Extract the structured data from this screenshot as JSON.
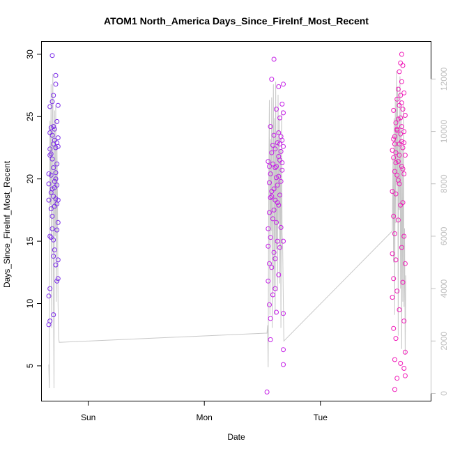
{
  "chart_data": {
    "type": "scatter",
    "title": "ATOM1 North_America Days_Since_FireInf_Most_Recent",
    "xlabel": "Date",
    "ylabel": "Days_Since_FireInf_Most_Recent",
    "x_ticks": [
      {
        "label": "Sun",
        "value": 0.0
      },
      {
        "label": "Mon",
        "value": 1.0
      },
      {
        "label": "Tue",
        "value": 2.0
      }
    ],
    "y_ticks": [
      5,
      10,
      15,
      20,
      25,
      30
    ],
    "y2_ticks": [
      0,
      2000,
      4000,
      6000,
      8000,
      10000,
      12000
    ],
    "xlim": [
      -0.4,
      2.95
    ],
    "ylim": [
      2.2,
      31.0
    ],
    "y2lim": [
      -280,
      13420
    ],
    "grid": false,
    "secondary_axis": "right",
    "colors": {
      "cluster_a": "#7a2ae8",
      "cluster_b": "#c41ee6",
      "cluster_c": "#f01ab8",
      "secondary_line": "#c8c8c8",
      "right_axis": "#bfbfbf"
    },
    "series": [
      {
        "points": [
          [
            -0.34,
            18.3
          ],
          [
            -0.33,
            8.6
          ],
          [
            -0.33,
            11.2
          ],
          [
            -0.33,
            15.4
          ],
          [
            -0.33,
            22.4
          ],
          [
            -0.33,
            25.8
          ],
          [
            -0.32,
            24.1
          ],
          [
            -0.32,
            20.3
          ],
          [
            -0.32,
            17.6
          ],
          [
            -0.32,
            15.3
          ],
          [
            -0.31,
            29.9
          ],
          [
            -0.31,
            26.2
          ],
          [
            -0.31,
            23.5
          ],
          [
            -0.31,
            21.6
          ],
          [
            -0.31,
            19.2
          ],
          [
            -0.31,
            17.0
          ],
          [
            -0.3,
            26.7
          ],
          [
            -0.3,
            24.2
          ],
          [
            -0.3,
            22.8
          ],
          [
            -0.3,
            20.9
          ],
          [
            -0.3,
            18.6
          ],
          [
            -0.3,
            15.1
          ],
          [
            -0.3,
            9.1
          ],
          [
            -0.29,
            14.3
          ],
          [
            -0.29,
            17.8
          ],
          [
            -0.29,
            19.8
          ],
          [
            -0.29,
            23.1
          ],
          [
            -0.28,
            28.3
          ],
          [
            -0.28,
            27.6
          ],
          [
            -0.28,
            22.5
          ],
          [
            -0.28,
            20.5
          ],
          [
            -0.28,
            18.4
          ],
          [
            -0.28,
            13.1
          ],
          [
            -0.27,
            11.8
          ],
          [
            -0.27,
            15.9
          ],
          [
            -0.27,
            24.6
          ],
          [
            -0.27,
            21.2
          ],
          [
            -0.27,
            19.5
          ],
          [
            -0.26,
            25.9
          ],
          [
            -0.26,
            23.3
          ],
          [
            -0.26,
            18.3
          ],
          [
            -0.26,
            13.5
          ],
          [
            -0.26,
            12.0
          ],
          [
            -0.26,
            16.5
          ],
          [
            -0.26,
            22.6
          ],
          [
            -0.34,
            19.6
          ],
          [
            -0.33,
            21.9
          ],
          [
            -0.32,
            18.9
          ],
          [
            -0.31,
            16.0
          ],
          [
            -0.3,
            13.8
          ],
          [
            -0.29,
            24.0
          ],
          [
            -0.28,
            20.0
          ],
          [
            -0.27,
            22.9
          ],
          [
            -0.34,
            20.4
          ],
          [
            -0.33,
            23.7
          ],
          [
            -0.32,
            22.0
          ],
          [
            -0.29,
            19.3
          ],
          [
            -0.27,
            18.0
          ],
          [
            -0.34,
            8.3
          ],
          [
            -0.34,
            10.6
          ]
        ]
      },
      {
        "points": [
          [
            1.54,
            2.9
          ],
          [
            1.55,
            21.4
          ],
          [
            1.55,
            16.0
          ],
          [
            1.55,
            11.8
          ],
          [
            1.56,
            17.3
          ],
          [
            1.56,
            19.7
          ],
          [
            1.56,
            13.2
          ],
          [
            1.56,
            9.9
          ],
          [
            1.57,
            24.2
          ],
          [
            1.57,
            20.4
          ],
          [
            1.57,
            15.3
          ],
          [
            1.57,
            8.8
          ],
          [
            1.57,
            7.1
          ],
          [
            1.58,
            28.0
          ],
          [
            1.58,
            22.1
          ],
          [
            1.58,
            18.6
          ],
          [
            1.58,
            12.9
          ],
          [
            1.59,
            21.2
          ],
          [
            1.59,
            16.8
          ],
          [
            1.59,
            10.7
          ],
          [
            1.6,
            29.6
          ],
          [
            1.6,
            23.5
          ],
          [
            1.6,
            19.2
          ],
          [
            1.6,
            14.1
          ],
          [
            1.61,
            22.4
          ],
          [
            1.61,
            18.3
          ],
          [
            1.61,
            13.6
          ],
          [
            1.61,
            11.2
          ],
          [
            1.62,
            25.6
          ],
          [
            1.62,
            21.0
          ],
          [
            1.62,
            16.5
          ],
          [
            1.62,
            9.3
          ],
          [
            1.63,
            22.9
          ],
          [
            1.63,
            19.5
          ],
          [
            1.63,
            15.0
          ],
          [
            1.64,
            27.4
          ],
          [
            1.64,
            23.7
          ],
          [
            1.64,
            20.2
          ],
          [
            1.64,
            17.9
          ],
          [
            1.64,
            12.3
          ],
          [
            1.65,
            24.9
          ],
          [
            1.65,
            21.5
          ],
          [
            1.65,
            18.7
          ],
          [
            1.65,
            14.5
          ],
          [
            1.66,
            22.2
          ],
          [
            1.66,
            19.8
          ],
          [
            1.66,
            16.1
          ],
          [
            1.67,
            26.0
          ],
          [
            1.67,
            23.1
          ],
          [
            1.67,
            20.7
          ],
          [
            1.68,
            27.6
          ],
          [
            1.68,
            25.3
          ],
          [
            1.68,
            22.6
          ],
          [
            1.68,
            15.0
          ],
          [
            1.68,
            9.2
          ],
          [
            1.68,
            6.3
          ],
          [
            1.68,
            5.1
          ],
          [
            1.56,
            21.0
          ],
          [
            1.58,
            19.0
          ],
          [
            1.6,
            17.5
          ],
          [
            1.62,
            20.1
          ],
          [
            1.64,
            21.8
          ],
          [
            1.66,
            23.4
          ],
          [
            1.59,
            22.7
          ],
          [
            1.61,
            20.9
          ],
          [
            1.63,
            18.1
          ],
          [
            1.65,
            22.8
          ],
          [
            1.67,
            21.3
          ],
          [
            1.57,
            18.5
          ],
          [
            1.55,
            14.6
          ]
        ]
      },
      {
        "points": [
          [
            2.62,
            22.3
          ],
          [
            2.62,
            19.0
          ],
          [
            2.62,
            14.0
          ],
          [
            2.62,
            10.5
          ],
          [
            2.63,
            25.5
          ],
          [
            2.63,
            21.7
          ],
          [
            2.63,
            17.0
          ],
          [
            2.63,
            12.0
          ],
          [
            2.63,
            8.0
          ],
          [
            2.64,
            23.4
          ],
          [
            2.64,
            20.6
          ],
          [
            2.64,
            15.6
          ],
          [
            2.64,
            5.5
          ],
          [
            2.64,
            3.1
          ],
          [
            2.65,
            24.5
          ],
          [
            2.65,
            22.1
          ],
          [
            2.65,
            18.8
          ],
          [
            2.65,
            13.5
          ],
          [
            2.65,
            7.2
          ],
          [
            2.66,
            26.4
          ],
          [
            2.66,
            23.9
          ],
          [
            2.66,
            20.3
          ],
          [
            2.66,
            11.0
          ],
          [
            2.66,
            4.0
          ],
          [
            2.67,
            27.2
          ],
          [
            2.67,
            24.8
          ],
          [
            2.67,
            21.4
          ],
          [
            2.67,
            16.7
          ],
          [
            2.68,
            28.6
          ],
          [
            2.68,
            25.9
          ],
          [
            2.68,
            22.8
          ],
          [
            2.68,
            19.6
          ],
          [
            2.68,
            9.5
          ],
          [
            2.69,
            29.3
          ],
          [
            2.69,
            26.7
          ],
          [
            2.69,
            23.6
          ],
          [
            2.69,
            17.9
          ],
          [
            2.69,
            5.2
          ],
          [
            2.7,
            30.0
          ],
          [
            2.7,
            27.8
          ],
          [
            2.7,
            24.2
          ],
          [
            2.7,
            21.0
          ],
          [
            2.7,
            14.5
          ],
          [
            2.71,
            29.1
          ],
          [
            2.71,
            25.6
          ],
          [
            2.71,
            22.5
          ],
          [
            2.71,
            18.1
          ],
          [
            2.71,
            11.7
          ],
          [
            2.72,
            26.9
          ],
          [
            2.72,
            23.8
          ],
          [
            2.72,
            20.4
          ],
          [
            2.72,
            15.4
          ],
          [
            2.72,
            8.6
          ],
          [
            2.72,
            4.8
          ],
          [
            2.73,
            25.1
          ],
          [
            2.73,
            21.9
          ],
          [
            2.73,
            13.2
          ],
          [
            2.73,
            6.1
          ],
          [
            2.73,
            4.2
          ],
          [
            2.64,
            22.8
          ],
          [
            2.66,
            24.0
          ],
          [
            2.68,
            21.9
          ],
          [
            2.7,
            23.0
          ],
          [
            2.67,
            19.9
          ],
          [
            2.69,
            24.9
          ],
          [
            2.71,
            20.8
          ],
          [
            2.65,
            21.3
          ],
          [
            2.63,
            23.2
          ],
          [
            2.72,
            22.9
          ],
          [
            2.7,
            26.1
          ]
        ]
      }
    ],
    "secondary_line": [
      [
        -0.34,
        1100
      ],
      [
        -0.335,
        200
      ],
      [
        -0.33,
        10400
      ],
      [
        -0.325,
        7200
      ],
      [
        -0.32,
        11800
      ],
      [
        -0.315,
        2500
      ],
      [
        -0.31,
        9000
      ],
      [
        -0.305,
        12200
      ],
      [
        -0.3,
        4100
      ],
      [
        -0.295,
        200
      ],
      [
        -0.29,
        10800
      ],
      [
        -0.285,
        6000
      ],
      [
        -0.28,
        11000
      ],
      [
        -0.275,
        3500
      ],
      [
        -0.27,
        9500
      ],
      [
        -0.265,
        7500
      ],
      [
        -0.26,
        3400
      ],
      [
        -0.255,
        2100
      ],
      [
        -0.25,
        1950
      ],
      [
        1.54,
        2300
      ],
      [
        1.545,
        2600
      ],
      [
        1.55,
        1000
      ],
      [
        1.555,
        8000
      ],
      [
        1.56,
        11200
      ],
      [
        1.565,
        3000
      ],
      [
        1.57,
        9700
      ],
      [
        1.575,
        6200
      ],
      [
        1.58,
        11300
      ],
      [
        1.585,
        2500
      ],
      [
        1.59,
        8800
      ],
      [
        1.595,
        11800
      ],
      [
        1.6,
        4000
      ],
      [
        1.605,
        10500
      ],
      [
        1.61,
        3000
      ],
      [
        1.615,
        11900
      ],
      [
        1.62,
        5500
      ],
      [
        1.625,
        9800
      ],
      [
        1.63,
        3900
      ],
      [
        1.635,
        11400
      ],
      [
        1.64,
        6500
      ],
      [
        1.645,
        10600
      ],
      [
        1.65,
        4200
      ],
      [
        1.655,
        9300
      ],
      [
        1.66,
        2500
      ],
      [
        1.665,
        10800
      ],
      [
        1.67,
        6100
      ],
      [
        1.675,
        5600
      ],
      [
        1.68,
        3600
      ],
      [
        1.685,
        2000
      ],
      [
        2.62,
        6200
      ],
      [
        2.625,
        9000
      ],
      [
        2.63,
        5000
      ],
      [
        2.635,
        10500
      ],
      [
        2.64,
        3000
      ],
      [
        2.645,
        11200
      ],
      [
        2.65,
        6500
      ],
      [
        2.655,
        12300
      ],
      [
        2.66,
        8000
      ],
      [
        2.665,
        11700
      ],
      [
        2.67,
        2200
      ],
      [
        2.675,
        10500
      ],
      [
        2.68,
        7000
      ],
      [
        2.685,
        12100
      ],
      [
        2.69,
        4000
      ],
      [
        2.695,
        10900
      ],
      [
        2.7,
        1700
      ],
      [
        2.705,
        9400
      ],
      [
        2.71,
        3500
      ],
      [
        2.715,
        11000
      ],
      [
        2.72,
        3300
      ],
      [
        2.725,
        6300
      ],
      [
        2.73,
        1500
      ],
      [
        2.735,
        4500
      ]
    ]
  }
}
